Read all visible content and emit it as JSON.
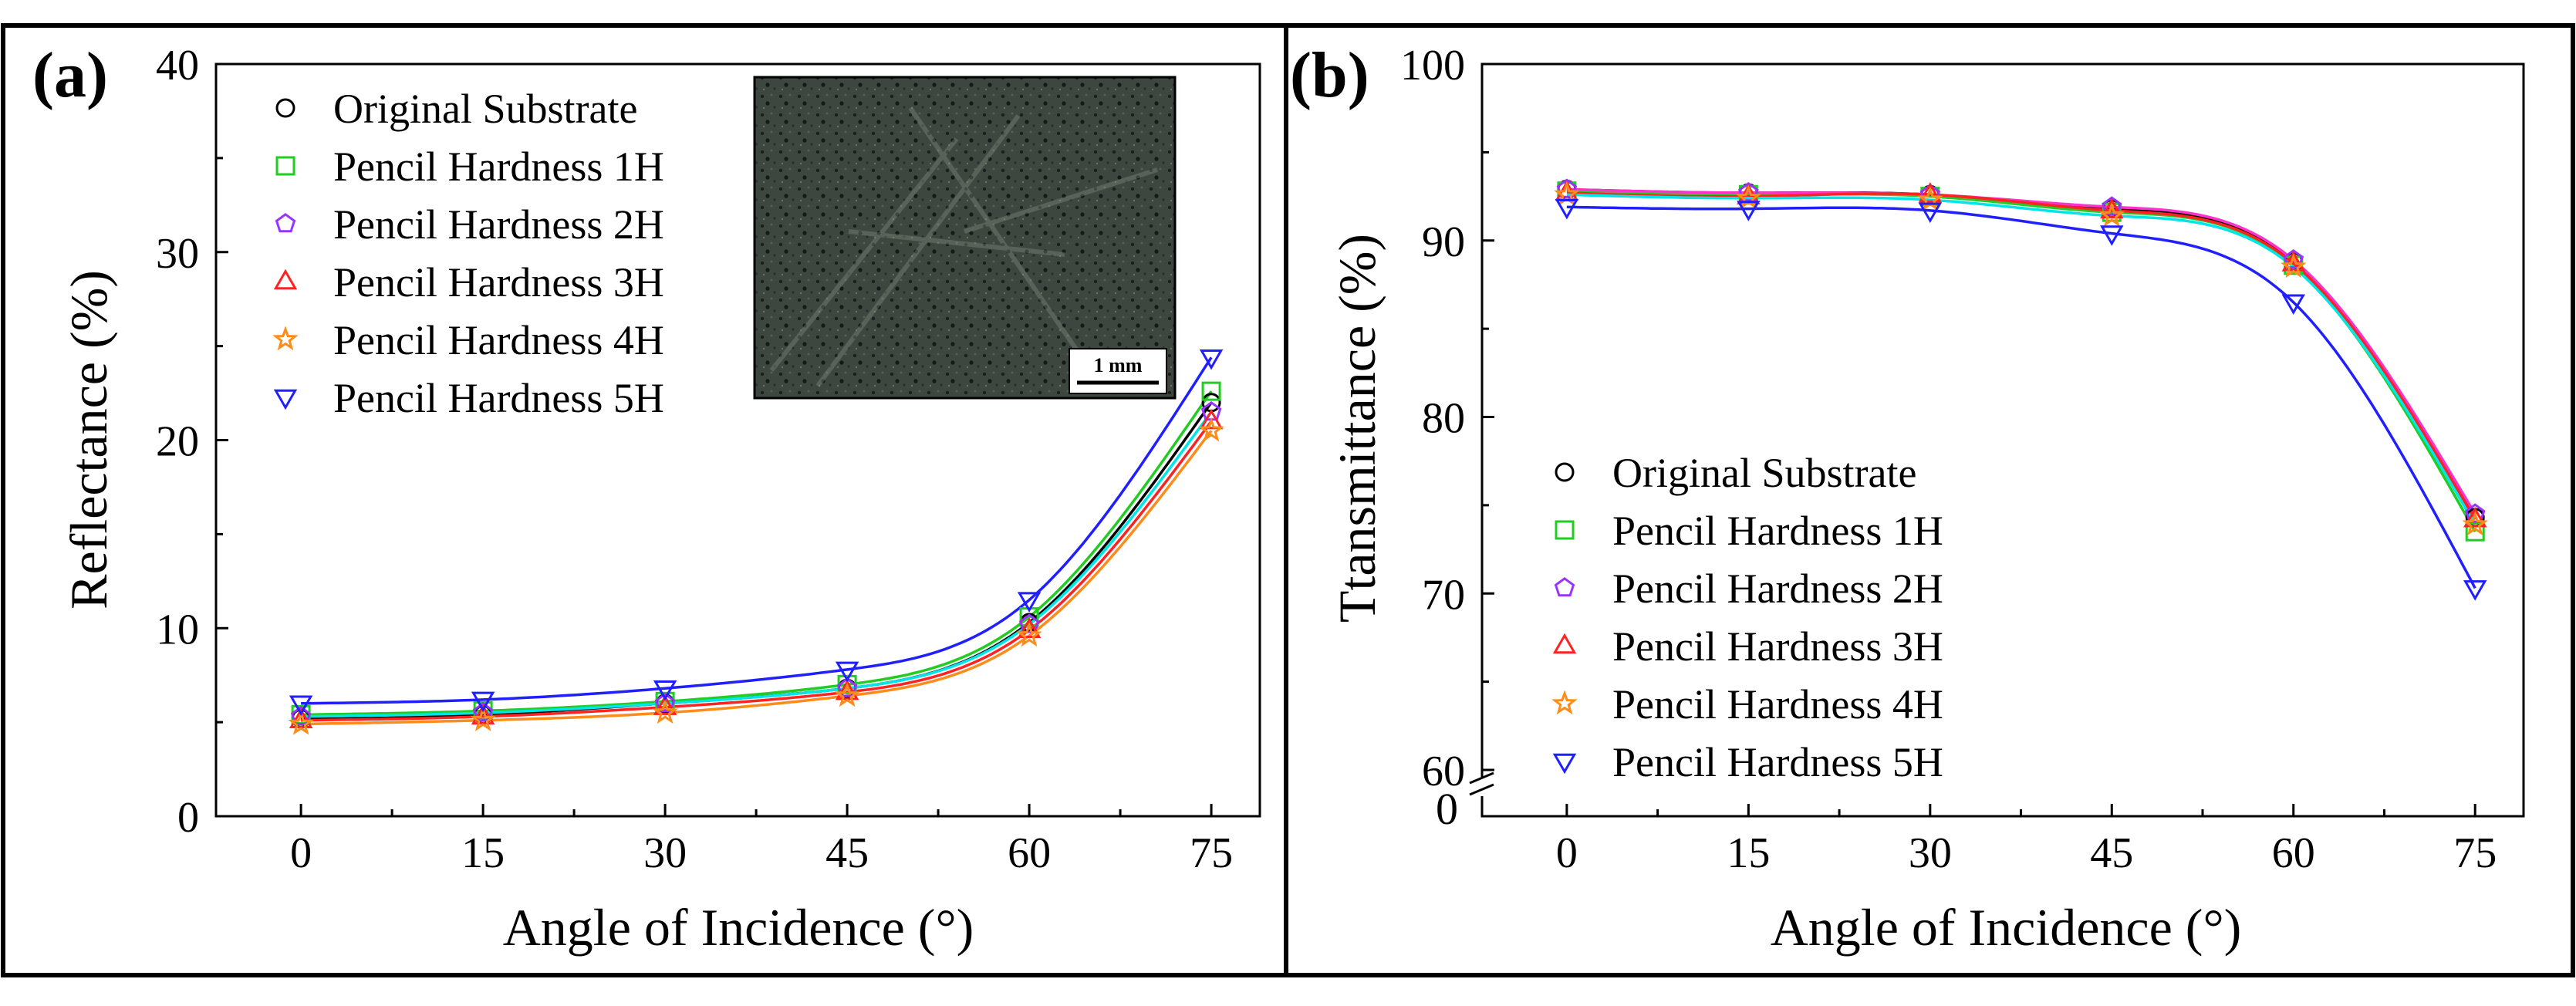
{
  "figure": {
    "panel_a_tag": "(a)",
    "panel_b_tag": "(b)",
    "inset_scale_label": "1 mm"
  },
  "chart_data": [
    {
      "id": "a",
      "type": "scatter",
      "title": "",
      "xlabel": "Angle of Incidence (°)",
      "ylabel": "Reflectance (%)",
      "xlim": [
        -7,
        79
      ],
      "ylim": [
        0,
        40
      ],
      "xticks": [
        0,
        15,
        30,
        45,
        60,
        75
      ],
      "yticks": [
        0,
        10,
        20,
        30,
        40
      ],
      "x": [
        0,
        15,
        30,
        45,
        60,
        75
      ],
      "legend_position": "top-left",
      "series": [
        {
          "name": "Original Substrate",
          "marker": "circle",
          "color": "#000000",
          "values": [
            5.2,
            5.4,
            6.0,
            6.8,
            10.3,
            22.0
          ]
        },
        {
          "name": "Pencil Hardness 1H",
          "marker": "square",
          "color": "#22cc22",
          "values": [
            5.4,
            5.6,
            6.1,
            7.0,
            10.6,
            22.6
          ]
        },
        {
          "name": "Pencil Hardness 2H",
          "marker": "pentagon",
          "color": "#9933ff",
          "values": [
            5.3,
            5.5,
            6.0,
            6.8,
            10.2,
            21.5
          ]
        },
        {
          "name": "Pencil Hardness 3H",
          "marker": "triangle-up",
          "color": "#ff2222",
          "values": [
            5.1,
            5.3,
            5.8,
            6.6,
            9.9,
            21.0
          ]
        },
        {
          "name": "Pencil Hardness 4H",
          "marker": "star",
          "color": "#ff8c1a",
          "values": [
            4.9,
            5.1,
            5.5,
            6.4,
            9.6,
            20.5
          ]
        },
        {
          "name": "Pencil Hardness 5H",
          "marker": "triangle-down",
          "color": "#1f1fff",
          "values": [
            6.0,
            6.2,
            6.8,
            7.8,
            11.5,
            24.4
          ]
        }
      ],
      "fit_colors": [
        "#000000",
        "#22cc22",
        "#00e5e5",
        "#ff2222",
        "#ff8c1a",
        "#1f1fff"
      ],
      "inset": "micrograph with 1 mm scale bar"
    },
    {
      "id": "b",
      "type": "scatter",
      "title": "",
      "xlabel": "Angle of Incidence (°)",
      "ylabel": "Ttansmittance (%)",
      "xlim": [
        -7,
        79
      ],
      "ylim": [
        60,
        100
      ],
      "broken_axis_label": "0",
      "xticks": [
        0,
        15,
        30,
        45,
        60,
        75
      ],
      "yticks": [
        60,
        70,
        80,
        90,
        100
      ],
      "x": [
        0,
        15,
        30,
        45,
        60,
        75
      ],
      "legend_position": "bottom-left",
      "series": [
        {
          "name": "Original Substrate",
          "marker": "circle",
          "color": "#000000",
          "values": [
            92.9,
            92.7,
            92.6,
            91.8,
            88.8,
            74.3
          ]
        },
        {
          "name": "Pencil Hardness 1H",
          "marker": "square",
          "color": "#22cc22",
          "values": [
            92.8,
            92.6,
            92.5,
            91.6,
            88.6,
            73.5
          ]
        },
        {
          "name": "Pencil Hardness 2H",
          "marker": "pentagon",
          "color": "#9933ff",
          "values": [
            92.9,
            92.7,
            92.6,
            91.9,
            88.9,
            74.5
          ]
        },
        {
          "name": "Pencil Hardness 3H",
          "marker": "triangle-up",
          "color": "#ff2222",
          "values": [
            92.7,
            92.5,
            92.6,
            91.7,
            88.7,
            74.2
          ]
        },
        {
          "name": "Pencil Hardness 4H",
          "marker": "star",
          "color": "#ff8c1a",
          "values": [
            92.6,
            92.4,
            92.3,
            91.4,
            88.5,
            73.9
          ]
        },
        {
          "name": "Pencil Hardness 5H",
          "marker": "triangle-down",
          "color": "#1f1fff",
          "values": [
            91.9,
            91.8,
            91.7,
            90.4,
            86.5,
            70.3
          ]
        }
      ],
      "fit_colors": [
        "#000000",
        "#22cc22",
        "#ff33cc",
        "#ff2222",
        "#00e5e5",
        "#1f1fff"
      ]
    }
  ]
}
